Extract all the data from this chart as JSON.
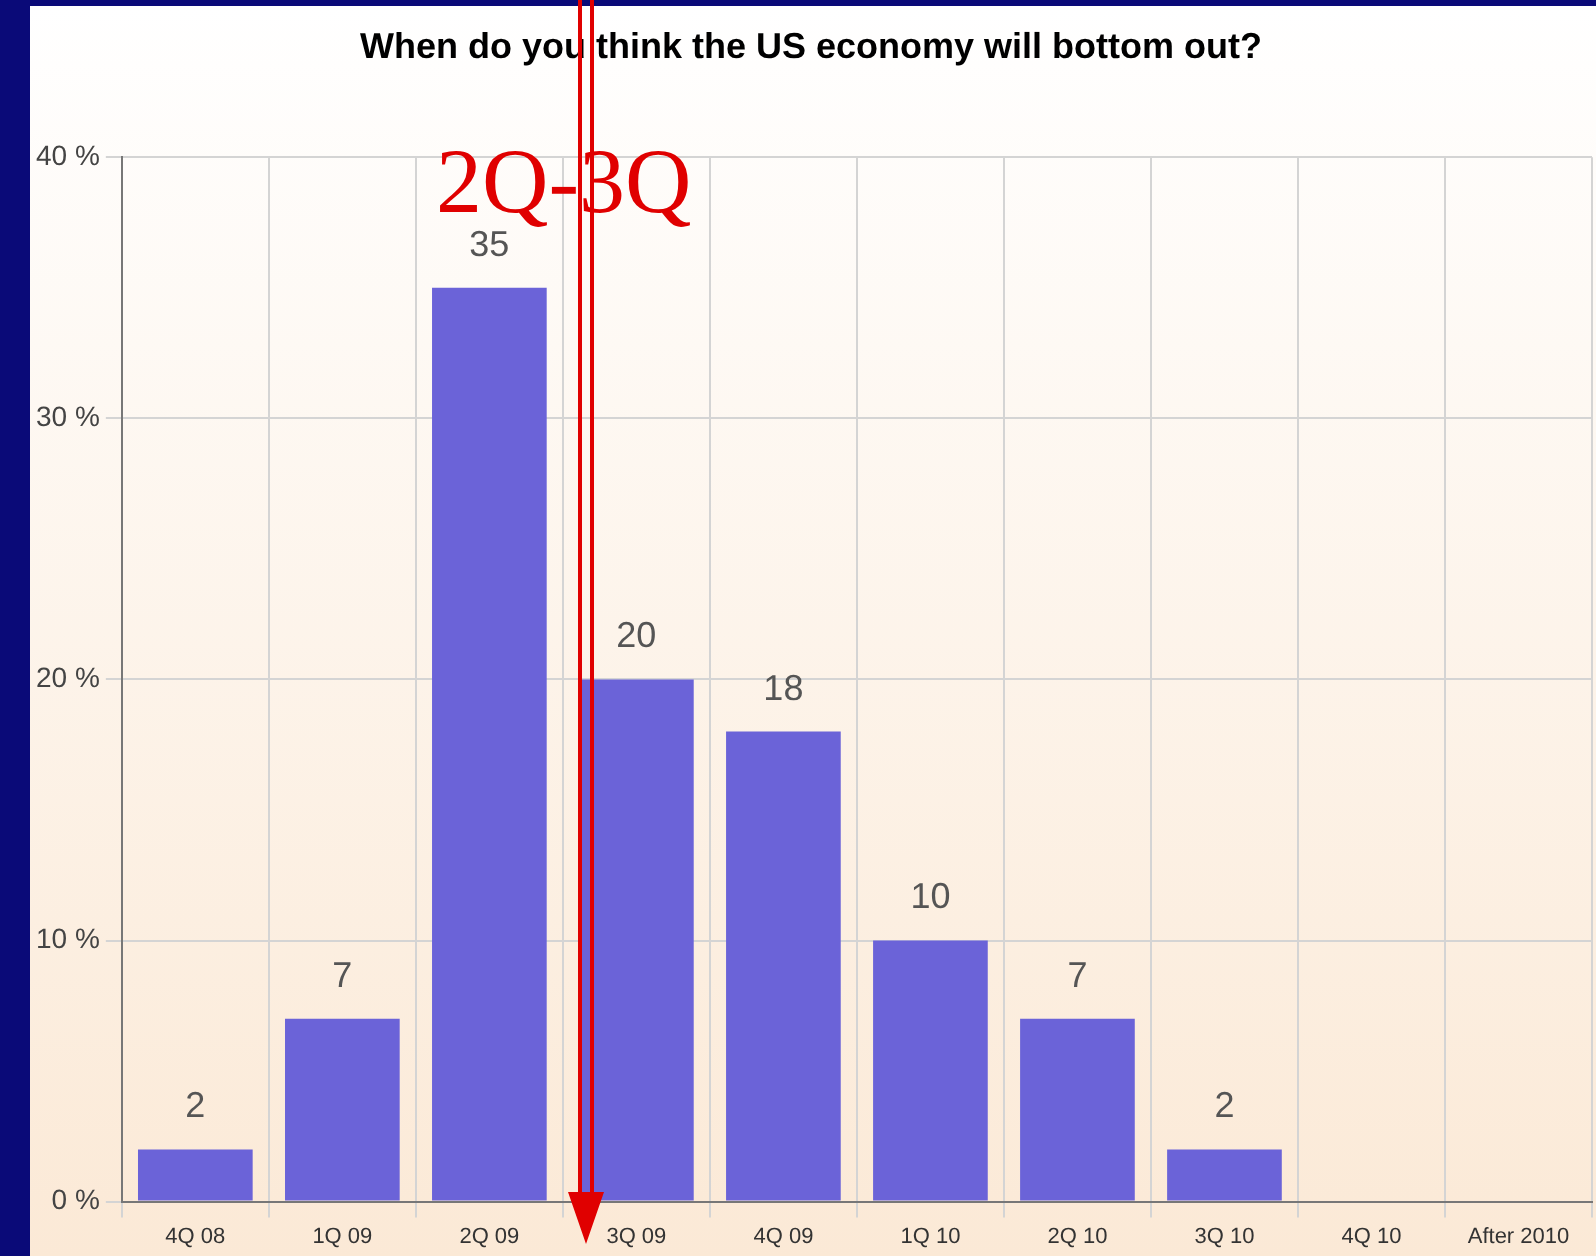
{
  "chart_data": {
    "type": "bar",
    "title": "When do you think the US economy will bottom out?",
    "categories": [
      "4Q 08",
      "1Q 09",
      "2Q 09",
      "3Q 09",
      "4Q 09",
      "1Q 10",
      "2Q 10",
      "3Q 10",
      "4Q 10",
      "After 2010"
    ],
    "values": [
      2,
      7,
      35,
      20,
      18,
      10,
      7,
      2,
      null,
      null
    ],
    "color": "#6b63d8",
    "ylim": [
      0,
      40
    ],
    "yticks": [
      {
        "value": 0,
        "label": "0 %"
      },
      {
        "value": 10,
        "label": "10 %"
      },
      {
        "value": 20,
        "label": "20 %"
      },
      {
        "value": 30,
        "label": "30 %"
      },
      {
        "value": 40,
        "label": "40 %"
      }
    ],
    "grid": true,
    "legend": false,
    "data_labels": true,
    "annotations": [
      "2Q-3Q"
    ]
  }
}
